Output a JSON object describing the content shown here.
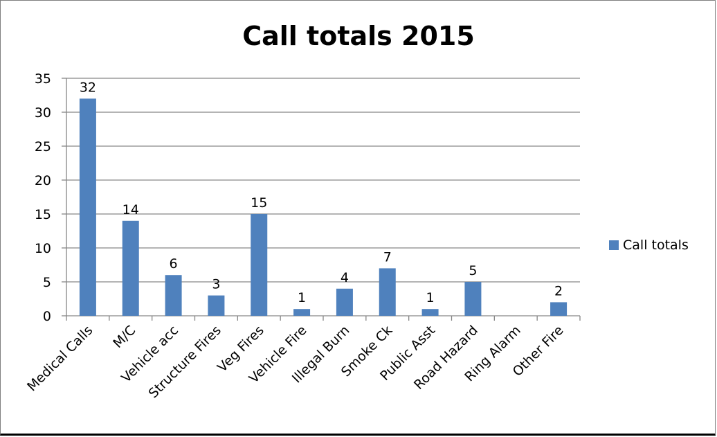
{
  "chart_data": {
    "type": "bar",
    "title": "Call totals 2015",
    "categories": [
      "Medical Calls",
      "M/C",
      "Vehicle acc",
      "Structure Fires",
      "Veg Fires",
      "Vehicle Fire",
      "Illegal Burn",
      "Smoke Ck",
      "Public Asst",
      "Road Hazard",
      "Ring Alarm",
      "Other Fire"
    ],
    "series": [
      {
        "name": "Call totals",
        "values": [
          32,
          14,
          6,
          3,
          15,
          1,
          4,
          7,
          1,
          5,
          0,
          2
        ],
        "color": "#4f81bd"
      }
    ],
    "data_labels": [
      "32",
      "14",
      "6",
      "3",
      "15",
      "1",
      "4",
      "7",
      "1",
      "5",
      "",
      "2"
    ],
    "ylim": [
      0,
      35
    ],
    "yticks": [
      0,
      5,
      10,
      15,
      20,
      25,
      30,
      35
    ],
    "xlabel": "",
    "ylabel": "",
    "grid": true,
    "legend_position": "right"
  },
  "colors": {
    "bar": "#4f81bd",
    "grid": "#868686",
    "axis": "#868686"
  }
}
